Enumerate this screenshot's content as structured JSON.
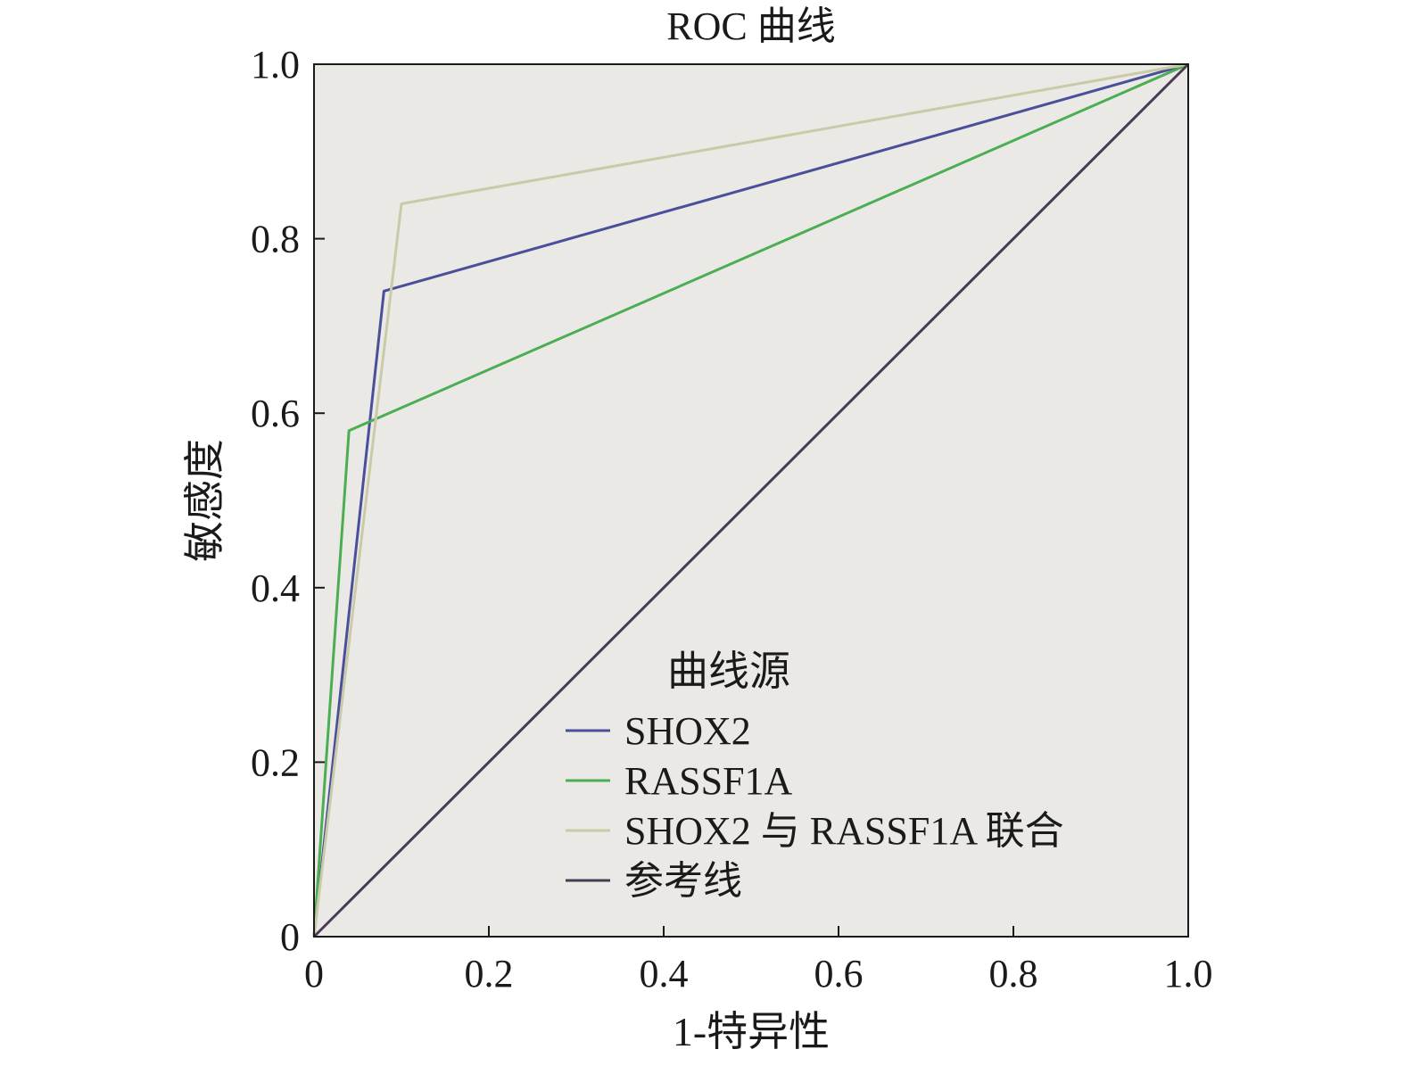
{
  "chart_data": {
    "type": "line",
    "title": "ROC 曲线",
    "xlabel": "1-特异性",
    "ylabel": "敏感度",
    "xlim": [
      0,
      1
    ],
    "ylim": [
      0,
      1
    ],
    "x_ticks": [
      "0",
      "0.2",
      "0.4",
      "0.6",
      "0.8",
      "1.0"
    ],
    "y_ticks": [
      "0",
      "0.2",
      "0.4",
      "0.6",
      "0.8",
      "1.0"
    ],
    "grid": false,
    "background": "#ebe9e6",
    "legend": {
      "title": "曲线源",
      "position": "bottom-right"
    },
    "series": [
      {
        "name": "SHOX2",
        "color": "#4a4f9a",
        "x": [
          0,
          0.08,
          1.0
        ],
        "y": [
          0,
          0.74,
          1.0
        ]
      },
      {
        "name": "RASSF1A",
        "color": "#4cae52",
        "x": [
          0,
          0.04,
          1.0
        ],
        "y": [
          0,
          0.58,
          1.0
        ]
      },
      {
        "name": "SHOX2 与 RASSF1A 联合",
        "color": "#c9cba8",
        "x": [
          0,
          0.1,
          1.0
        ],
        "y": [
          0,
          0.84,
          1.0
        ]
      },
      {
        "name": "参考线",
        "color": "#4a3a52",
        "x": [
          0,
          1.0
        ],
        "y": [
          0,
          1.0
        ]
      }
    ]
  }
}
